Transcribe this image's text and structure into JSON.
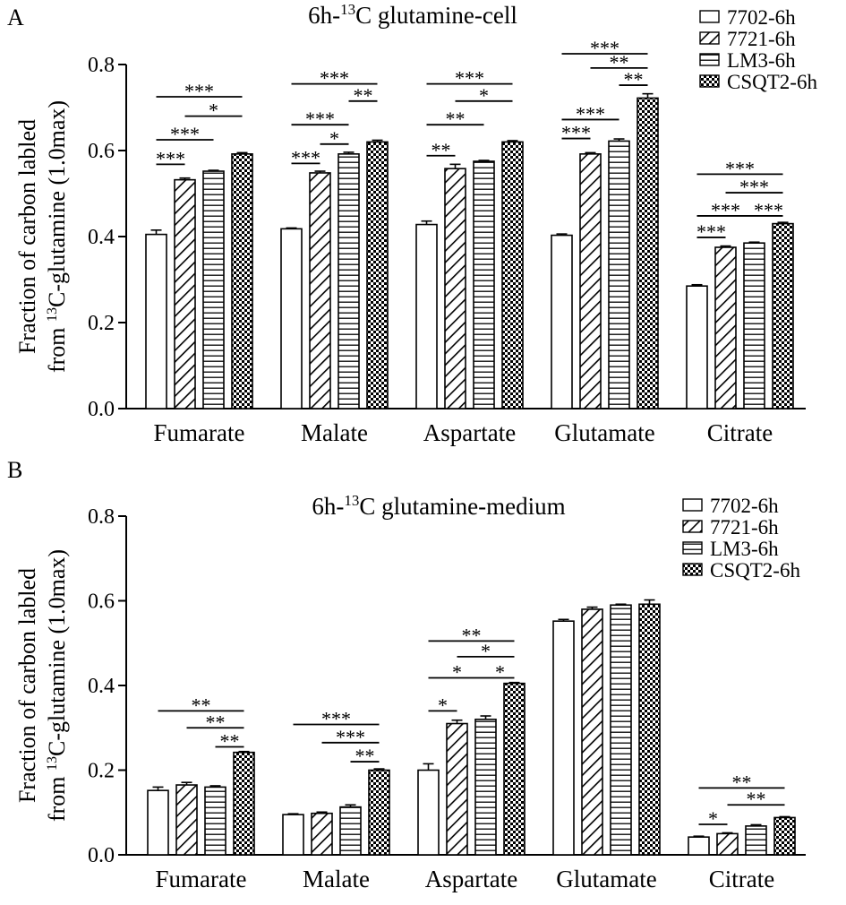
{
  "chart_data": [
    {
      "panel": "A",
      "type": "bar",
      "title": "6h-13C glutamine-cell",
      "title_parts": {
        "pre": "6h-",
        "sup": "13",
        "post": "C glutamine-cell"
      },
      "ylabel_line1": "Fraction of carbon labled",
      "ylabel_line2": {
        "pre": "from ",
        "sup": "13",
        "post": "C-glutamine (1.0max)"
      },
      "xlabel": "",
      "ylim": [
        0,
        0.8
      ],
      "yticks": [
        "0.0",
        "0.2",
        "0.4",
        "0.6",
        "0.8"
      ],
      "categories": [
        "Fumarate",
        "Malate",
        "Aspartate",
        "Glutamate",
        "Citrate"
      ],
      "legend": "top-right",
      "series": [
        {
          "name": "7702-6h",
          "values": [
            0.405,
            0.418,
            0.428,
            0.403,
            0.285
          ],
          "errors": [
            0.01,
            0.002,
            0.008,
            0.003,
            0.003
          ]
        },
        {
          "name": "7721-6h",
          "values": [
            0.532,
            0.548,
            0.558,
            0.592,
            0.375
          ],
          "errors": [
            0.004,
            0.004,
            0.01,
            0.003,
            0.003
          ]
        },
        {
          "name": "LM3-6h",
          "values": [
            0.552,
            0.592,
            0.575,
            0.622,
            0.385
          ],
          "errors": [
            0.002,
            0.004,
            0.002,
            0.005,
            0.002
          ]
        },
        {
          "name": "CSQT2-6h",
          "values": [
            0.592,
            0.62,
            0.62,
            0.722,
            0.43
          ],
          "errors": [
            0.003,
            0.004,
            0.003,
            0.01,
            0.003
          ]
        }
      ],
      "significance": [
        {
          "category": 0,
          "a": 0,
          "b": 3,
          "label": "***",
          "level": 0.725
        },
        {
          "category": 0,
          "a": 1,
          "b": 3,
          "label": "*",
          "level": 0.68
        },
        {
          "category": 0,
          "a": 0,
          "b": 2,
          "label": "***",
          "level": 0.625
        },
        {
          "category": 0,
          "a": 0,
          "b": 1,
          "label": "***",
          "level": 0.568
        },
        {
          "category": 1,
          "a": 0,
          "b": 3,
          "label": "***",
          "level": 0.755
        },
        {
          "category": 1,
          "a": 2,
          "b": 3,
          "label": "**",
          "level": 0.715
        },
        {
          "category": 1,
          "a": 0,
          "b": 2,
          "label": "***",
          "level": 0.66
        },
        {
          "category": 1,
          "a": 1,
          "b": 2,
          "label": "*",
          "level": 0.615
        },
        {
          "category": 1,
          "a": 0,
          "b": 1,
          "label": "***",
          "level": 0.57
        },
        {
          "category": 2,
          "a": 0,
          "b": 3,
          "label": "***",
          "level": 0.755
        },
        {
          "category": 2,
          "a": 1,
          "b": 3,
          "label": "*",
          "level": 0.715
        },
        {
          "category": 2,
          "a": 0,
          "b": 2,
          "label": "**",
          "level": 0.66
        },
        {
          "category": 2,
          "a": 0,
          "b": 1,
          "label": "**",
          "level": 0.588
        },
        {
          "category": 3,
          "a": 0,
          "b": 3,
          "label": "***",
          "level": 0.825
        },
        {
          "category": 3,
          "a": 1,
          "b": 3,
          "label": "**",
          "level": 0.792
        },
        {
          "category": 3,
          "a": 2,
          "b": 3,
          "label": "**",
          "level": 0.752
        },
        {
          "category": 3,
          "a": 0,
          "b": 2,
          "label": "***",
          "level": 0.672
        },
        {
          "category": 3,
          "a": 0,
          "b": 1,
          "label": "***",
          "level": 0.628
        },
        {
          "category": 4,
          "a": 0,
          "b": 3,
          "label": "***",
          "level": 0.545
        },
        {
          "category": 4,
          "a": 1,
          "b": 3,
          "label": "***",
          "level": 0.502
        },
        {
          "category": 4,
          "a": 0,
          "b": 2,
          "label": "***",
          "level": 0.448
        },
        {
          "category": 4,
          "a": 2,
          "b": 3,
          "label": "***",
          "level": 0.448
        },
        {
          "category": 4,
          "a": 0,
          "b": 1,
          "label": "***",
          "level": 0.398
        }
      ]
    },
    {
      "panel": "B",
      "type": "bar",
      "title": "6h-13C glutamine-medium",
      "title_parts": {
        "pre": "6h-",
        "sup": "13",
        "post": "C glutamine-medium"
      },
      "ylabel_line1": "Fraction of carbon labled",
      "ylabel_line2": {
        "pre": "from ",
        "sup": "13",
        "post": "C-glutamine (1.0max)"
      },
      "xlabel": "",
      "ylim": [
        0,
        0.8
      ],
      "yticks": [
        "0.0",
        "0.2",
        "0.4",
        "0.6",
        "0.8"
      ],
      "categories": [
        "Fumarate",
        "Malate",
        "Aspartate",
        "Glutamate",
        "Citrate"
      ],
      "legend": "top-right",
      "series": [
        {
          "name": "7702-6h",
          "values": [
            0.152,
            0.095,
            0.2,
            0.552,
            0.042
          ],
          "errors": [
            0.008,
            0.002,
            0.015,
            0.004,
            0.002
          ]
        },
        {
          "name": "7721-6h",
          "values": [
            0.165,
            0.098,
            0.31,
            0.58,
            0.05
          ],
          "errors": [
            0.006,
            0.003,
            0.008,
            0.005,
            0.002
          ]
        },
        {
          "name": "LM3-6h",
          "values": [
            0.16,
            0.113,
            0.32,
            0.59,
            0.068
          ],
          "errors": [
            0.003,
            0.005,
            0.008,
            0.002,
            0.003
          ]
        },
        {
          "name": "CSQT2-6h",
          "values": [
            0.242,
            0.2,
            0.405,
            0.592,
            0.088
          ],
          "errors": [
            0.002,
            0.003,
            0.002,
            0.01,
            0.002
          ]
        }
      ],
      "significance": [
        {
          "category": 0,
          "a": 0,
          "b": 3,
          "label": "**",
          "level": 0.34
        },
        {
          "category": 0,
          "a": 1,
          "b": 3,
          "label": "**",
          "level": 0.3
        },
        {
          "category": 0,
          "a": 2,
          "b": 3,
          "label": "**",
          "level": 0.255
        },
        {
          "category": 1,
          "a": 0,
          "b": 3,
          "label": "***",
          "level": 0.308
        },
        {
          "category": 1,
          "a": 1,
          "b": 3,
          "label": "***",
          "level": 0.265
        },
        {
          "category": 1,
          "a": 2,
          "b": 3,
          "label": "**",
          "level": 0.22
        },
        {
          "category": 2,
          "a": 0,
          "b": 3,
          "label": "**",
          "level": 0.505
        },
        {
          "category": 2,
          "a": 1,
          "b": 3,
          "label": "*",
          "level": 0.468
        },
        {
          "category": 2,
          "a": 0,
          "b": 2,
          "label": "*",
          "level": 0.418
        },
        {
          "category": 2,
          "a": 2,
          "b": 3,
          "label": "*",
          "level": 0.418
        },
        {
          "category": 2,
          "a": 0,
          "b": 1,
          "label": "*",
          "level": 0.34
        },
        {
          "category": 4,
          "a": 0,
          "b": 3,
          "label": "**",
          "level": 0.158
        },
        {
          "category": 4,
          "a": 1,
          "b": 3,
          "label": "**",
          "level": 0.118
        },
        {
          "category": 4,
          "a": 0,
          "b": 1,
          "label": "*",
          "level": 0.072
        }
      ]
    }
  ]
}
